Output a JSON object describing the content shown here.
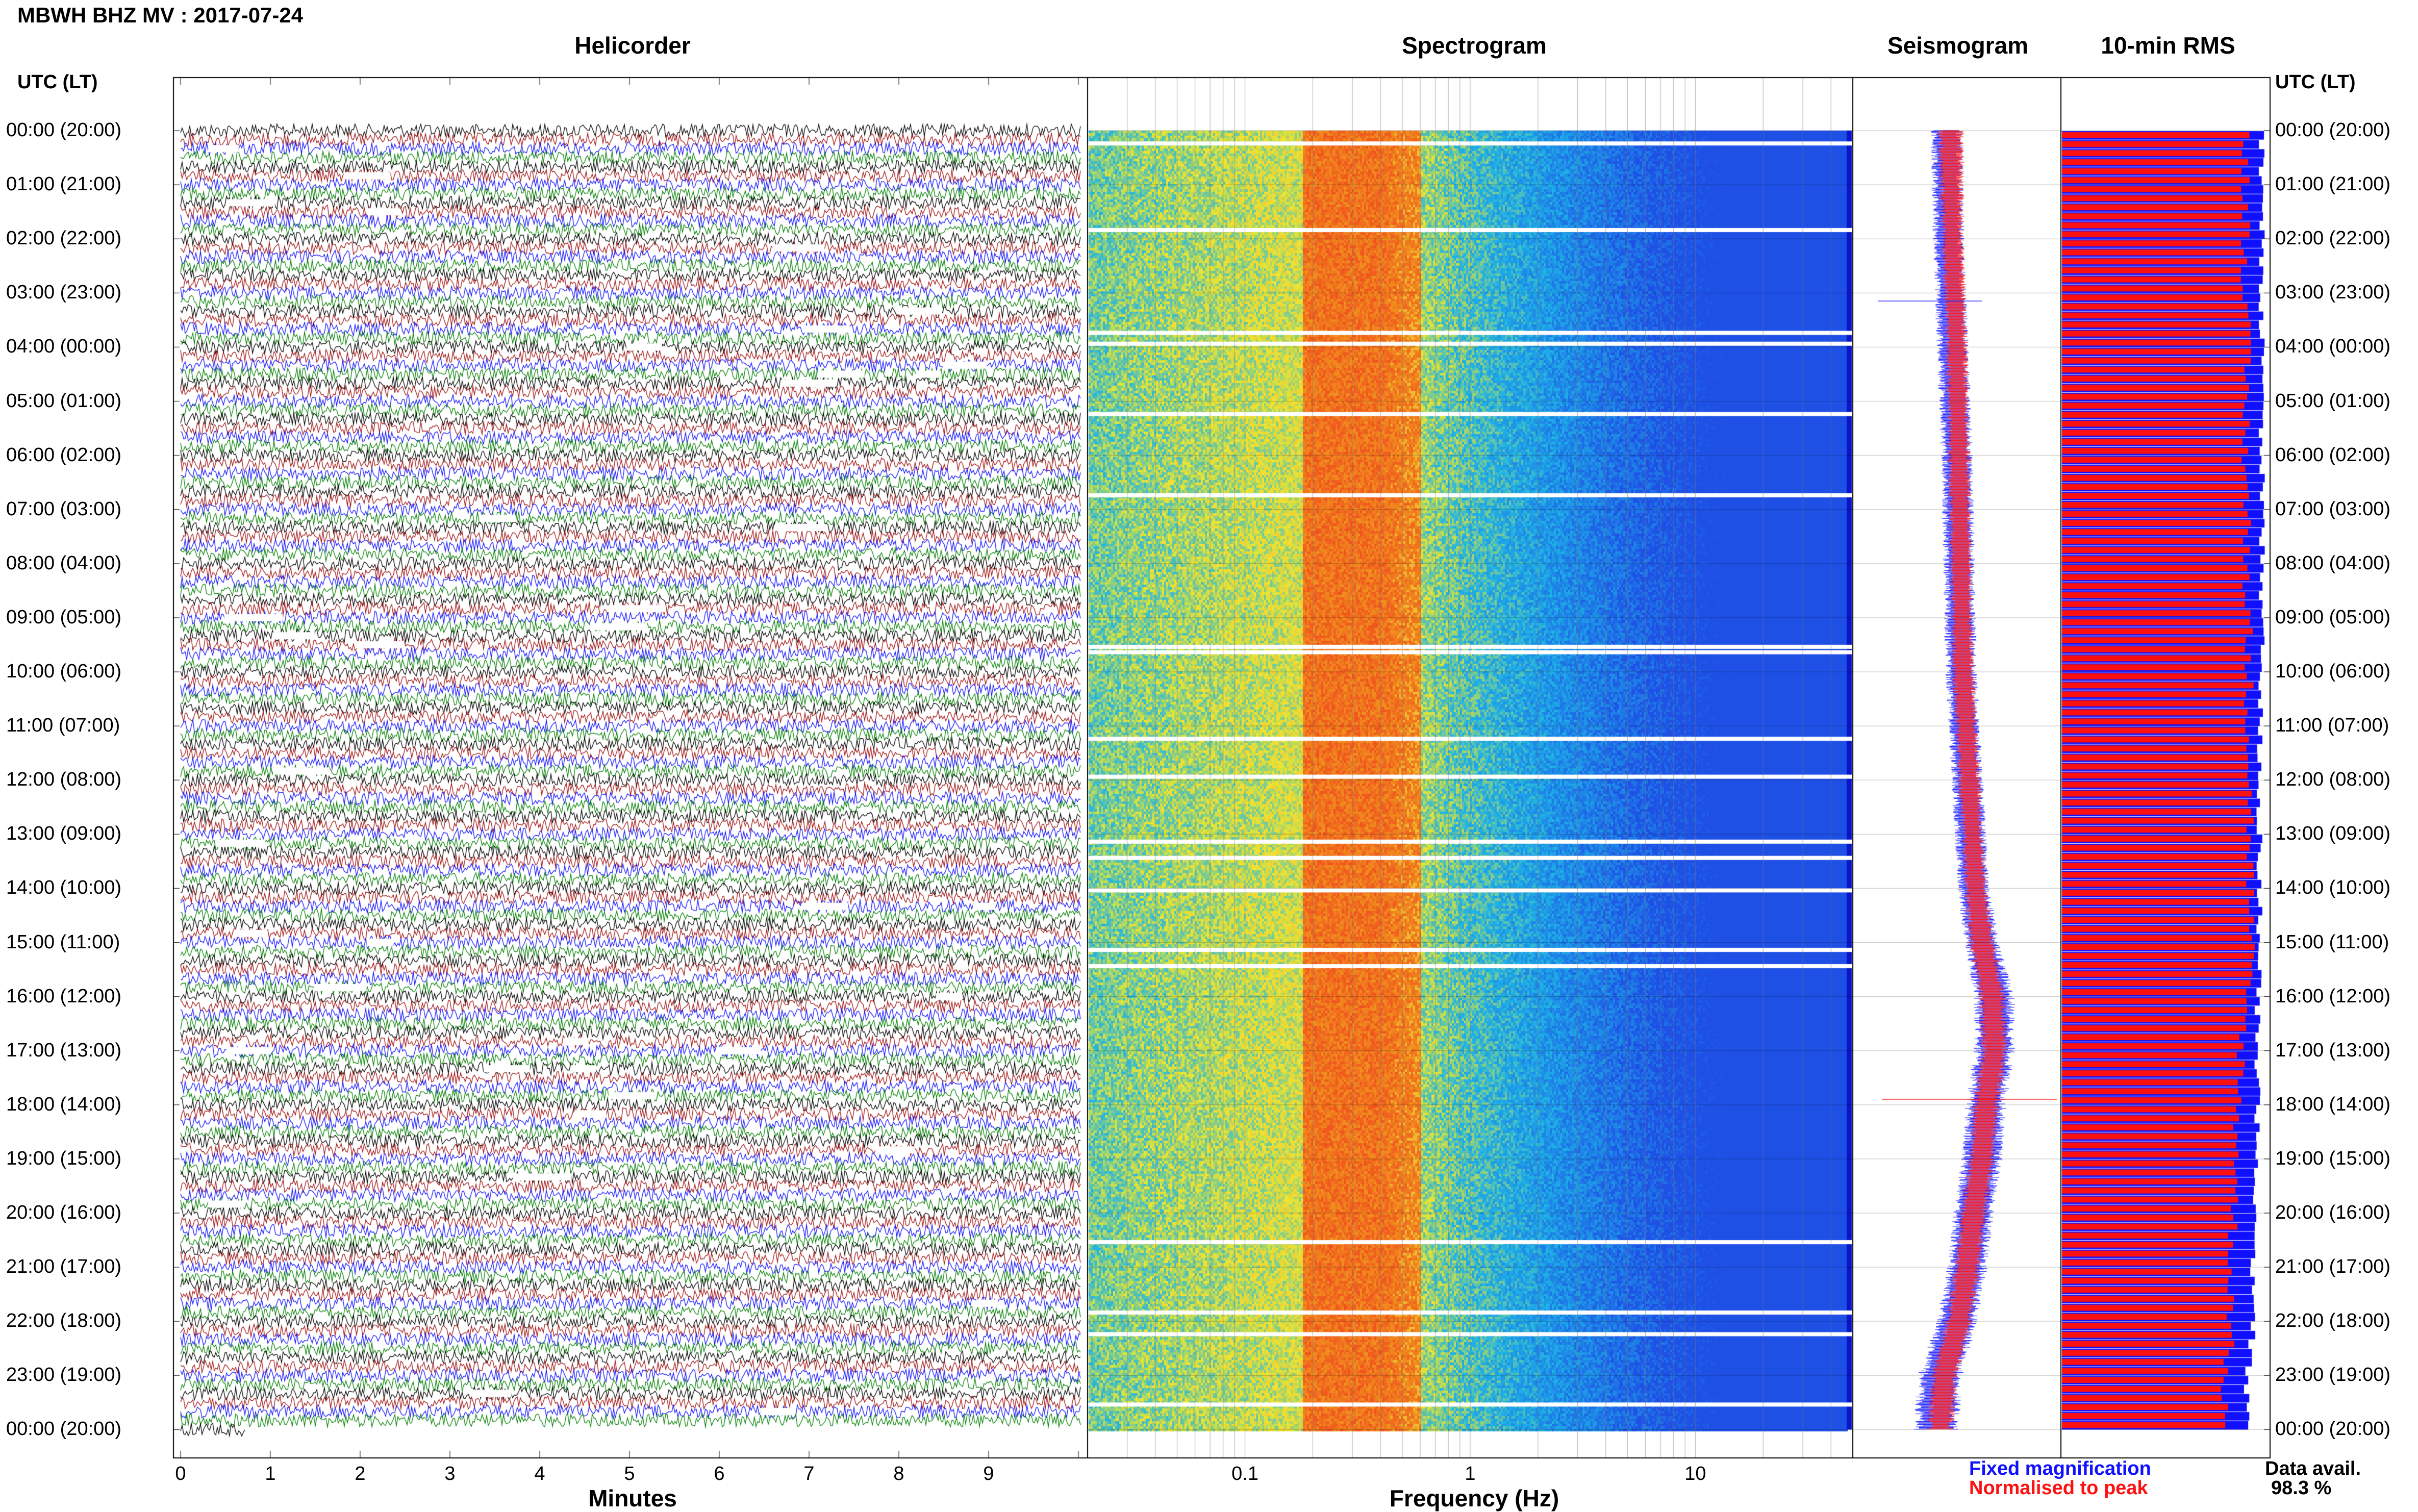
{
  "station_title": "MBWH BHZ MV : 2017-07-24",
  "panels": {
    "helicorder": "Helicorder",
    "spectrogram": "Spectrogram",
    "seismogram": "Seismogram",
    "rms": "10-min RMS"
  },
  "axes": {
    "utc_lt_label": "UTC (LT)",
    "minutes_label": "Minutes",
    "frequency_label": "Frequency (Hz)"
  },
  "legend": {
    "fixed_magnification": "Fixed magnification",
    "normalised_to_peak": "Normalised to peak",
    "fixed_color": "#1010ff",
    "normalised_color": "#ff1010"
  },
  "data_avail": {
    "label": "Data avail.",
    "value": "98.3 %"
  },
  "colors": {
    "trace_black": "#000000",
    "trace_red": "#a01010",
    "trace_blue": "#1010ff",
    "trace_green": "#008000",
    "spec_low": "#1f5fe0",
    "spec_mid": "#f2e33a",
    "spec_peak": "#f08a1a"
  },
  "chart_data": [
    {
      "type": "line",
      "panel": "Helicorder",
      "title": "Helicorder",
      "xlabel": "Minutes",
      "x_ticks": [
        "0",
        "1",
        "2",
        "3",
        "4",
        "5",
        "6",
        "7",
        "8",
        "9"
      ],
      "xlim": [
        0,
        10
      ],
      "y_tick_labels": [
        "00:00 (20:00)",
        "01:00 (21:00)",
        "02:00 (22:00)",
        "03:00 (23:00)",
        "04:00 (00:00)",
        "05:00 (01:00)",
        "06:00 (02:00)",
        "07:00 (03:00)",
        "08:00 (04:00)",
        "09:00 (05:00)",
        "10:00 (06:00)",
        "11:00 (07:00)",
        "12:00 (08:00)",
        "13:00 (09:00)",
        "14:00 (10:00)",
        "15:00 (11:00)",
        "16:00 (12:00)",
        "17:00 (13:00)",
        "18:00 (14:00)",
        "19:00 (15:00)",
        "20:00 (16:00)",
        "21:00 (17:00)",
        "22:00 (18:00)",
        "23:00 (19:00)",
        "00:00 (20:00)"
      ],
      "lines_per_hour": 6,
      "trace_color_cycle": [
        "black",
        "red",
        "blue",
        "green"
      ]
    },
    {
      "type": "heatmap",
      "panel": "Spectrogram",
      "title": "Spectrogram",
      "xlabel": "Frequency (Hz)",
      "x_scale": "log",
      "x_ticks": [
        "0.1",
        "1",
        "10"
      ],
      "xlim": [
        0.02,
        50
      ],
      "peak_band_hz": [
        0.2,
        0.5
      ],
      "data_gap_rows_hours": [
        0.2,
        1.8,
        3.7,
        3.9,
        5.2,
        6.7,
        9.5,
        9.6,
        11.2,
        11.9,
        13.1,
        13.4,
        14.0,
        15.1,
        15.4,
        20.5,
        21.8,
        22.2,
        23.5
      ]
    },
    {
      "type": "line",
      "panel": "Seismogram",
      "title": "Seismogram",
      "series": [
        {
          "name": "Fixed magnification",
          "color": "#1010ff",
          "hours": [
            0,
            2,
            4,
            6,
            8,
            10,
            12,
            14,
            15,
            16,
            17,
            18,
            19,
            20,
            21,
            22,
            23,
            24
          ],
          "center": [
            0.45,
            0.46,
            0.48,
            0.5,
            0.51,
            0.52,
            0.55,
            0.58,
            0.62,
            0.68,
            0.68,
            0.64,
            0.62,
            0.58,
            0.55,
            0.5,
            0.42,
            0.4
          ],
          "half_width": [
            0.07,
            0.07,
            0.07,
            0.07,
            0.07,
            0.07,
            0.07,
            0.07,
            0.08,
            0.09,
            0.09,
            0.09,
            0.09,
            0.09,
            0.09,
            0.09,
            0.1,
            0.1
          ]
        },
        {
          "name": "Normalised to peak",
          "color": "#ff1010",
          "hours": [
            0,
            2,
            4,
            6,
            8,
            10,
            12,
            14,
            15,
            16,
            17,
            18,
            19,
            20,
            21,
            22,
            23,
            24
          ],
          "center": [
            0.47,
            0.48,
            0.5,
            0.51,
            0.52,
            0.53,
            0.56,
            0.59,
            0.62,
            0.67,
            0.68,
            0.64,
            0.62,
            0.58,
            0.55,
            0.51,
            0.44,
            0.42
          ],
          "half_width": [
            0.06,
            0.05,
            0.05,
            0.05,
            0.05,
            0.05,
            0.05,
            0.05,
            0.06,
            0.06,
            0.06,
            0.06,
            0.06,
            0.06,
            0.06,
            0.06,
            0.06,
            0.06
          ]
        }
      ]
    },
    {
      "type": "bar",
      "panel": "10-min RMS",
      "title": "10-min RMS",
      "orientation": "horizontal",
      "intervals_per_hour": 6,
      "series": [
        {
          "name": "Fixed magnification",
          "color": "#1010ff",
          "hours": [
            0,
            3,
            6,
            9,
            12,
            14,
            15,
            16,
            17,
            18,
            19,
            20,
            21,
            22,
            23,
            24
          ],
          "level": [
            0.97,
            0.97,
            0.97,
            0.97,
            0.96,
            0.96,
            0.96,
            0.95,
            0.95,
            0.95,
            0.95,
            0.94,
            0.93,
            0.93,
            0.9,
            0.9
          ]
        },
        {
          "name": "Normalised to peak",
          "color": "#ff1010",
          "hours": [
            0,
            3,
            6,
            9,
            12,
            14,
            15,
            16,
            17,
            18,
            19,
            20,
            21,
            22,
            23,
            24
          ],
          "level": [
            0.88,
            0.88,
            0.88,
            0.89,
            0.9,
            0.9,
            0.9,
            0.88,
            0.86,
            0.84,
            0.84,
            0.82,
            0.81,
            0.81,
            0.78,
            0.78
          ]
        }
      ]
    }
  ]
}
